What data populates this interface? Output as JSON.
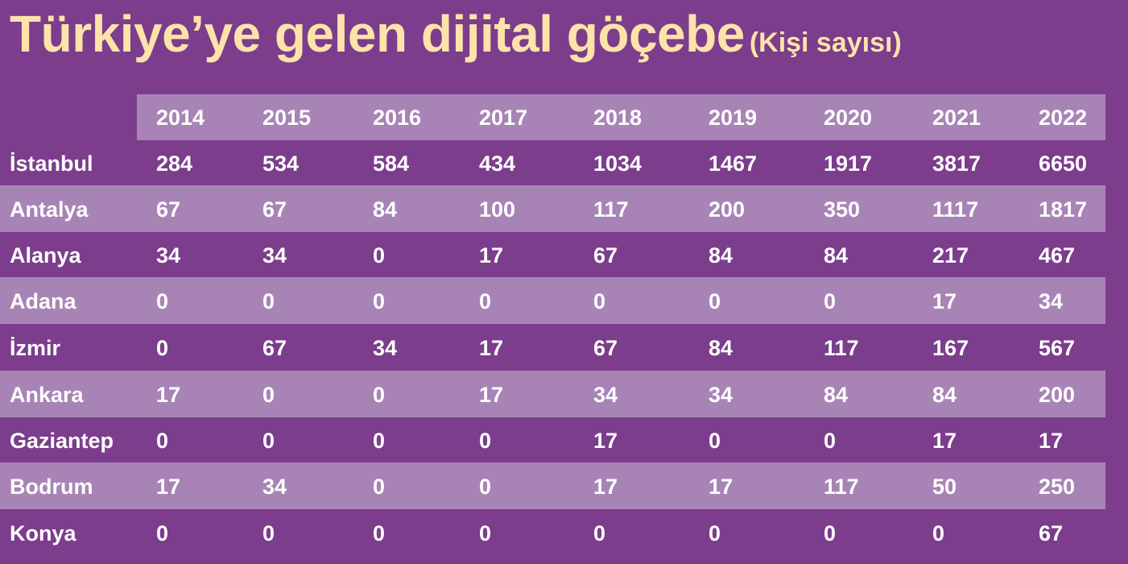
{
  "title": "Türkiye’ye gelen dijital göçebe",
  "subtitle": "(Kişi sayısı)",
  "colors": {
    "background": "#7c3d8c",
    "band": "#a884b6",
    "title": "#fde3a9",
    "text": "#ffffff"
  },
  "chart_data": {
    "type": "table",
    "title": "Türkiye’ye gelen dijital göçebe",
    "subtitle": "(Kişi sayısı)",
    "columns": [
      "2014",
      "2015",
      "2016",
      "2017",
      "2018",
      "2019",
      "2020",
      "2021",
      "2022"
    ],
    "rows": [
      {
        "name": "İstanbul",
        "values": [
          284,
          534,
          584,
          434,
          1034,
          1467,
          1917,
          3817,
          6650
        ]
      },
      {
        "name": "Antalya",
        "values": [
          67,
          67,
          84,
          100,
          117,
          200,
          350,
          1117,
          1817
        ]
      },
      {
        "name": "Alanya",
        "values": [
          34,
          34,
          0,
          17,
          67,
          84,
          84,
          217,
          467
        ]
      },
      {
        "name": "Adana",
        "values": [
          0,
          0,
          0,
          0,
          0,
          0,
          0,
          17,
          34
        ]
      },
      {
        "name": "İzmir",
        "values": [
          0,
          67,
          34,
          17,
          67,
          84,
          117,
          167,
          567
        ]
      },
      {
        "name": "Ankara",
        "values": [
          17,
          0,
          0,
          17,
          34,
          34,
          84,
          84,
          200
        ]
      },
      {
        "name": "Gaziantep",
        "values": [
          0,
          0,
          0,
          0,
          17,
          0,
          0,
          17,
          17
        ]
      },
      {
        "name": "Bodrum",
        "values": [
          17,
          34,
          0,
          0,
          17,
          17,
          117,
          50,
          250
        ]
      },
      {
        "name": "Konya",
        "values": [
          0,
          0,
          0,
          0,
          0,
          0,
          0,
          0,
          67
        ]
      }
    ]
  }
}
